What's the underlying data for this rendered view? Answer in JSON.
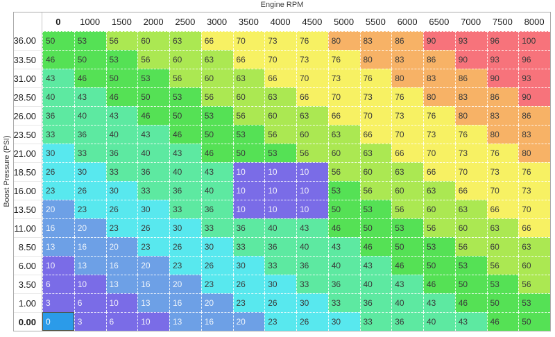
{
  "axes": {
    "x_label": "Engine RPM",
    "y_label": "Boost Pressure (PSI)"
  },
  "table": {
    "col_headers": [
      "0",
      "1000",
      "1500",
      "2000",
      "2500",
      "3000",
      "3500",
      "4000",
      "4500",
      "5000",
      "5500",
      "6000",
      "6500",
      "7000",
      "7500",
      "8000"
    ],
    "row_headers": [
      "36.00",
      "33.50",
      "31.00",
      "28.50",
      "26.00",
      "23.50",
      "21.00",
      "18.50",
      "16.00",
      "13.50",
      "11.00",
      "8.50",
      "6.00",
      "3.50",
      "1.00",
      "0.00"
    ],
    "rows": [
      [
        50,
        53,
        56,
        60,
        63,
        66,
        70,
        73,
        76,
        80,
        83,
        86,
        90,
        93,
        96,
        100
      ],
      [
        46,
        50,
        53,
        56,
        60,
        63,
        66,
        70,
        73,
        76,
        80,
        83,
        86,
        90,
        93,
        96
      ],
      [
        43,
        46,
        50,
        53,
        56,
        60,
        63,
        66,
        70,
        73,
        76,
        80,
        83,
        86,
        90,
        93
      ],
      [
        40,
        43,
        46,
        50,
        53,
        56,
        60,
        63,
        66,
        70,
        73,
        76,
        80,
        83,
        86,
        90
      ],
      [
        36,
        40,
        43,
        46,
        50,
        53,
        56,
        60,
        63,
        66,
        70,
        73,
        76,
        80,
        83,
        86
      ],
      [
        33,
        36,
        40,
        43,
        46,
        50,
        53,
        56,
        60,
        63,
        66,
        70,
        73,
        76,
        80,
        83
      ],
      [
        30,
        33,
        36,
        40,
        43,
        46,
        50,
        53,
        56,
        60,
        63,
        66,
        70,
        73,
        76,
        80
      ],
      [
        26,
        30,
        33,
        36,
        40,
        43,
        10,
        10,
        10,
        56,
        60,
        63,
        66,
        70,
        73,
        76
      ],
      [
        23,
        26,
        30,
        33,
        36,
        40,
        10,
        10,
        10,
        53,
        56,
        60,
        63,
        66,
        70,
        73
      ],
      [
        20,
        23,
        26,
        30,
        33,
        36,
        10,
        10,
        10,
        50,
        53,
        56,
        60,
        63,
        66,
        70
      ],
      [
        16,
        20,
        23,
        26,
        30,
        33,
        36,
        40,
        43,
        46,
        50,
        53,
        56,
        60,
        63,
        66
      ],
      [
        13,
        16,
        20,
        23,
        26,
        30,
        33,
        36,
        40,
        43,
        46,
        50,
        53,
        56,
        60,
        63
      ],
      [
        10,
        13,
        16,
        20,
        23,
        26,
        30,
        33,
        36,
        40,
        43,
        46,
        50,
        53,
        56,
        60
      ],
      [
        6,
        10,
        13,
        16,
        20,
        23,
        26,
        30,
        33,
        36,
        40,
        43,
        46,
        50,
        53,
        56
      ],
      [
        3,
        6,
        10,
        13,
        16,
        20,
        23,
        26,
        30,
        33,
        36,
        40,
        43,
        46,
        50,
        53
      ],
      [
        0,
        3,
        6,
        10,
        13,
        16,
        20,
        23,
        26,
        30,
        33,
        36,
        40,
        43,
        46,
        50
      ]
    ],
    "selected": {
      "row_index": 15,
      "col_index": 0,
      "row_label": "0.00",
      "col_label": "0",
      "value": 0
    }
  },
  "color_bands": [
    {
      "min": 0,
      "max": 2,
      "bg": "#2b9be9",
      "fg": "#ffffff"
    },
    {
      "min": 3,
      "max": 12,
      "bg": "#7a6ce7",
      "fg": "#f0effb"
    },
    {
      "min": 13,
      "max": 22,
      "bg": "#6da0e6",
      "fg": "#eef4fb"
    },
    {
      "min": 23,
      "max": 32,
      "bg": "#58e8ee",
      "fg": "#3a3a3a"
    },
    {
      "min": 33,
      "max": 45,
      "bg": "#5de9a1",
      "fg": "#3a3a3a"
    },
    {
      "min": 46,
      "max": 55,
      "bg": "#55e155",
      "fg": "#3a3a3a"
    },
    {
      "min": 56,
      "max": 65,
      "bg": "#abe852",
      "fg": "#3a3a3a"
    },
    {
      "min": 66,
      "max": 79,
      "bg": "#f7f163",
      "fg": "#3a3a3a"
    },
    {
      "min": 80,
      "max": 89,
      "bg": "#f7b266",
      "fg": "#3a3a3a"
    },
    {
      "min": 90,
      "max": 100,
      "bg": "#f7737b",
      "fg": "#3a3a3a"
    }
  ],
  "selection_style": {
    "fill": "#2b9be9",
    "border": "#4f4f3e",
    "fg": "#ffffff"
  }
}
